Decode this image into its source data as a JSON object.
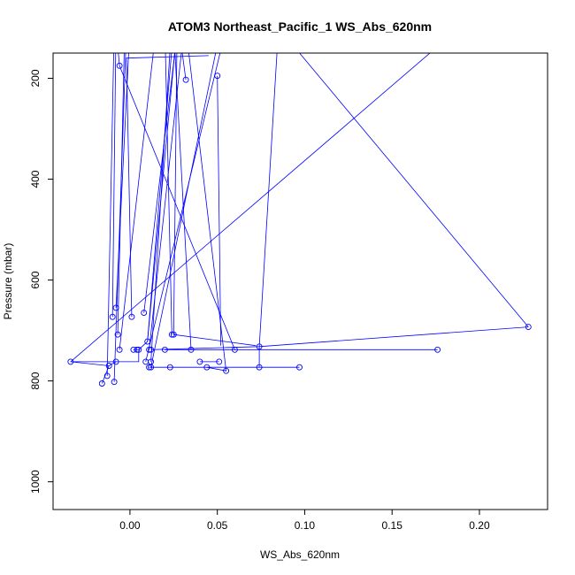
{
  "chart_data": {
    "type": "scatter",
    "title": "ATOM3 Northeast_Pacific_1 WS_Abs_620nm",
    "xlabel": "WS_Abs_620nm",
    "ylabel": "Pressure (mbar)",
    "xlim": [
      -0.044,
      0.239
    ],
    "ylim": [
      1055,
      150
    ],
    "y_reversed": true,
    "grid": false,
    "x_ticks": [
      0.0,
      0.05,
      0.1,
      0.15,
      0.2
    ],
    "x_tick_labels": [
      "0.00",
      "0.05",
      "0.10",
      "0.15",
      "0.20"
    ],
    "y_ticks": [
      200,
      400,
      600,
      800,
      1000
    ],
    "y_tick_labels": [
      "200",
      "400",
      "600",
      "800",
      "1000"
    ],
    "series_color": "#0000ff",
    "points": [
      {
        "x": -0.016,
        "y": 805
      },
      {
        "x": -0.013,
        "y": 790
      },
      {
        "x": -0.012,
        "y": 770
      },
      {
        "x": -0.034,
        "y": 762
      },
      {
        "x": -0.008,
        "y": 762
      },
      {
        "x": -0.009,
        "y": 802
      },
      {
        "x": -0.006,
        "y": 738
      },
      {
        "x": -0.007,
        "y": 708
      },
      {
        "x": -0.008,
        "y": 655
      },
      {
        "x": -0.01,
        "y": 673
      },
      {
        "x": 0.001,
        "y": 673
      },
      {
        "x": 0.002,
        "y": 738
      },
      {
        "x": 0.004,
        "y": 738
      },
      {
        "x": 0.005,
        "y": 738
      },
      {
        "x": 0.008,
        "y": 665
      },
      {
        "x": 0.01,
        "y": 722
      },
      {
        "x": 0.011,
        "y": 738
      },
      {
        "x": 0.009,
        "y": 762
      },
      {
        "x": 0.012,
        "y": 762
      },
      {
        "x": 0.012,
        "y": 773
      },
      {
        "x": 0.011,
        "y": 773
      },
      {
        "x": 0.012,
        "y": 738
      },
      {
        "x": 0.02,
        "y": 738
      },
      {
        "x": 0.023,
        "y": 773
      },
      {
        "x": 0.024,
        "y": 708
      },
      {
        "x": 0.025,
        "y": 708
      },
      {
        "x": 0.035,
        "y": 738
      },
      {
        "x": 0.04,
        "y": 762
      },
      {
        "x": 0.044,
        "y": 773
      },
      {
        "x": 0.051,
        "y": 762
      },
      {
        "x": 0.055,
        "y": 780
      },
      {
        "x": 0.06,
        "y": 738
      },
      {
        "x": 0.074,
        "y": 732
      },
      {
        "x": 0.074,
        "y": 773
      },
      {
        "x": 0.097,
        "y": 773
      },
      {
        "x": 0.176,
        "y": 738
      },
      {
        "x": 0.228,
        "y": 693
      },
      {
        "x": -0.006,
        "y": 175
      },
      {
        "x": 0.032,
        "y": 203
      },
      {
        "x": 0.05,
        "y": 195
      }
    ],
    "lines": [
      [
        [
          -0.016,
          805
        ],
        [
          -0.012,
          770
        ],
        [
          -0.008,
          762
        ]
      ],
      [
        [
          -0.013,
          790
        ],
        [
          -0.009,
          100
        ]
      ],
      [
        [
          -0.012,
          770
        ],
        [
          -0.034,
          762
        ],
        [
          0.005,
          762
        ],
        [
          0.005,
          740
        ]
      ],
      [
        [
          -0.034,
          762
        ],
        [
          0.175,
          140
        ]
      ],
      [
        [
          -0.009,
          802
        ],
        [
          -0.002,
          100
        ]
      ],
      [
        [
          -0.006,
          738
        ],
        [
          0.015,
          100
        ]
      ],
      [
        [
          -0.007,
          708
        ],
        [
          -0.003,
          100
        ]
      ],
      [
        [
          -0.008,
          655
        ],
        [
          0.0,
          100
        ]
      ],
      [
        [
          -0.01,
          673
        ],
        [
          -0.008,
          100
        ]
      ],
      [
        [
          0.001,
          673
        ],
        [
          -0.002,
          160
        ],
        [
          0.045,
          155
        ]
      ],
      [
        [
          0.002,
          738
        ],
        [
          0.005,
          738
        ],
        [
          0.01,
          722
        ],
        [
          0.024,
          140
        ]
      ],
      [
        [
          0.008,
          665
        ],
        [
          0.026,
          140
        ]
      ],
      [
        [
          0.01,
          722
        ],
        [
          0.027,
          100
        ]
      ],
      [
        [
          0.011,
          738
        ],
        [
          0.031,
          100
        ]
      ],
      [
        [
          0.009,
          762
        ],
        [
          0.055,
          100
        ]
      ],
      [
        [
          0.012,
          762
        ],
        [
          0.023,
          140
        ]
      ],
      [
        [
          0.012,
          773
        ],
        [
          0.052,
          100
        ]
      ],
      [
        [
          0.024,
          708
        ],
        [
          0.02,
          100
        ]
      ],
      [
        [
          0.025,
          708
        ],
        [
          0.027,
          100
        ]
      ],
      [
        [
          0.025,
          708
        ],
        [
          0.072,
          730
        ]
      ],
      [
        [
          0.02,
          738
        ],
        [
          0.176,
          738
        ]
      ],
      [
        [
          0.012,
          738
        ],
        [
          0.074,
          732
        ],
        [
          0.228,
          693
        ]
      ],
      [
        [
          0.035,
          738
        ],
        [
          0.025,
          100
        ]
      ],
      [
        [
          0.04,
          762
        ],
        [
          0.051,
          762
        ]
      ],
      [
        [
          0.011,
          773
        ],
        [
          0.097,
          773
        ]
      ],
      [
        [
          0.044,
          773
        ],
        [
          0.055,
          780
        ],
        [
          0.032,
          100
        ]
      ],
      [
        [
          0.06,
          738
        ],
        [
          -0.006,
          175
        ]
      ],
      [
        [
          0.074,
          773
        ],
        [
          0.074,
          732
        ],
        [
          0.085,
          100
        ]
      ],
      [
        [
          0.228,
          693
        ],
        [
          0.085,
          100
        ]
      ],
      [
        [
          0.05,
          195
        ],
        [
          0.052,
          730
        ]
      ],
      [
        [
          0.032,
          203
        ],
        [
          0.028,
          100
        ]
      ],
      [
        [
          -0.006,
          175
        ],
        [
          -0.008,
          100
        ]
      ]
    ]
  }
}
